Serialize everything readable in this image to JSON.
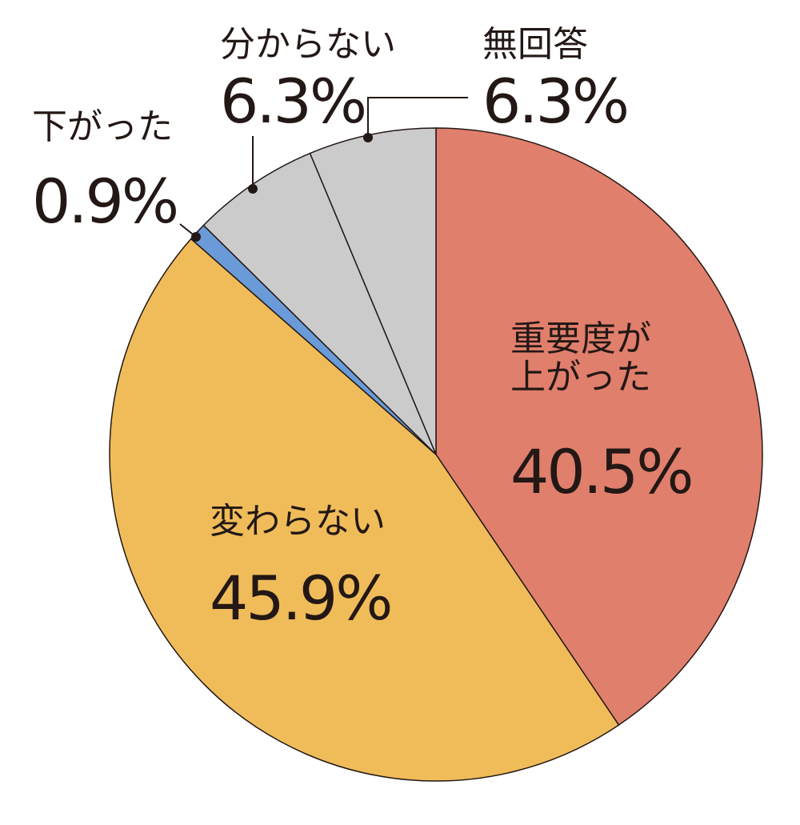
{
  "chart_data": {
    "type": "pie",
    "categories": [
      "重要度が上がった",
      "変わらない",
      "下がった",
      "分からない",
      "無回答"
    ],
    "values": [
      40.5,
      45.9,
      0.9,
      6.3,
      6.3
    ],
    "value_labels": [
      "40.5%",
      "45.9%",
      "0.9%",
      "6.3%",
      "6.3%"
    ],
    "colors": [
      "#e07f6c",
      "#f0bc5a",
      "#6a9bd8",
      "#cbcbcb",
      "#cbcbcb"
    ]
  }
}
